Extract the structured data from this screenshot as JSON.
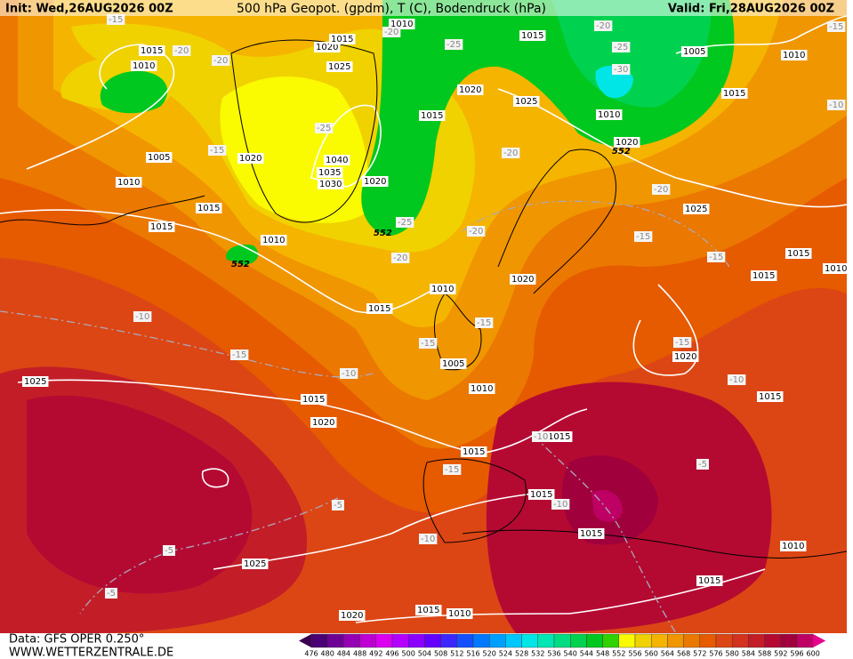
{
  "header": {
    "init": "Init: Wed,26AUG2026 00Z",
    "title": "500 hPa Geopot. (gpdm), T (C), Bodendruck (hPa)",
    "valid": "Valid: Fri,28AUG2026 00Z"
  },
  "footer": {
    "source": "Data: GFS OPER 0.250°",
    "site": "WWW.WETTERZENTRALE.DE"
  },
  "color_scale": {
    "ticks": [
      476,
      480,
      484,
      488,
      492,
      496,
      500,
      504,
      508,
      512,
      516,
      520,
      524,
      528,
      532,
      536,
      540,
      544,
      548,
      552,
      556,
      560,
      564,
      568,
      572,
      576,
      580,
      584,
      588,
      592,
      596,
      600
    ],
    "colors": [
      "#4b0073",
      "#6e0096",
      "#9600b4",
      "#be00d2",
      "#dc00f0",
      "#b400ff",
      "#8c00ff",
      "#6400ff",
      "#3c28ff",
      "#1450ff",
      "#0078ff",
      "#00a0ff",
      "#00c8ff",
      "#00e6e6",
      "#00e6b4",
      "#00dc82",
      "#00d250",
      "#00c81e",
      "#32d200",
      "#fafa00",
      "#f0d200",
      "#f5b400",
      "#f09600",
      "#eb7800",
      "#e65a00",
      "#dc4614",
      "#d2321e",
      "#c31e28",
      "#b40a32",
      "#a0003c",
      "#be0064"
    ]
  },
  "map_labels": {
    "pressure": [
      1015,
      1010,
      1005,
      1010,
      1015,
      1015,
      1020,
      1010,
      1015,
      1010,
      1005,
      1010,
      1015,
      1020,
      1025,
      1015,
      1015,
      1015,
      1010,
      1015,
      1025,
      1020,
      1015,
      1010,
      1020,
      1025,
      1015,
      1015,
      1010,
      1020,
      1015,
      1015,
      1025,
      1015,
      1020,
      1020,
      1030,
      1035,
      1040,
      1025,
      1020,
      1015,
      1010,
      1015,
      1005,
      1010,
      1015,
      1010,
      1020
    ],
    "temperature": [
      -15,
      -20,
      -20,
      -15,
      -25,
      -20,
      -25,
      -25,
      -30,
      -20,
      -15,
      -10,
      -20,
      -20,
      -15,
      -15,
      -25,
      -20,
      -20,
      -15,
      -15,
      -10,
      -15,
      -10,
      -15,
      -10,
      -10,
      -10,
      -15,
      -10,
      -5,
      -5,
      -5,
      -5
    ],
    "geopotential": [
      552,
      552,
      552
    ]
  }
}
